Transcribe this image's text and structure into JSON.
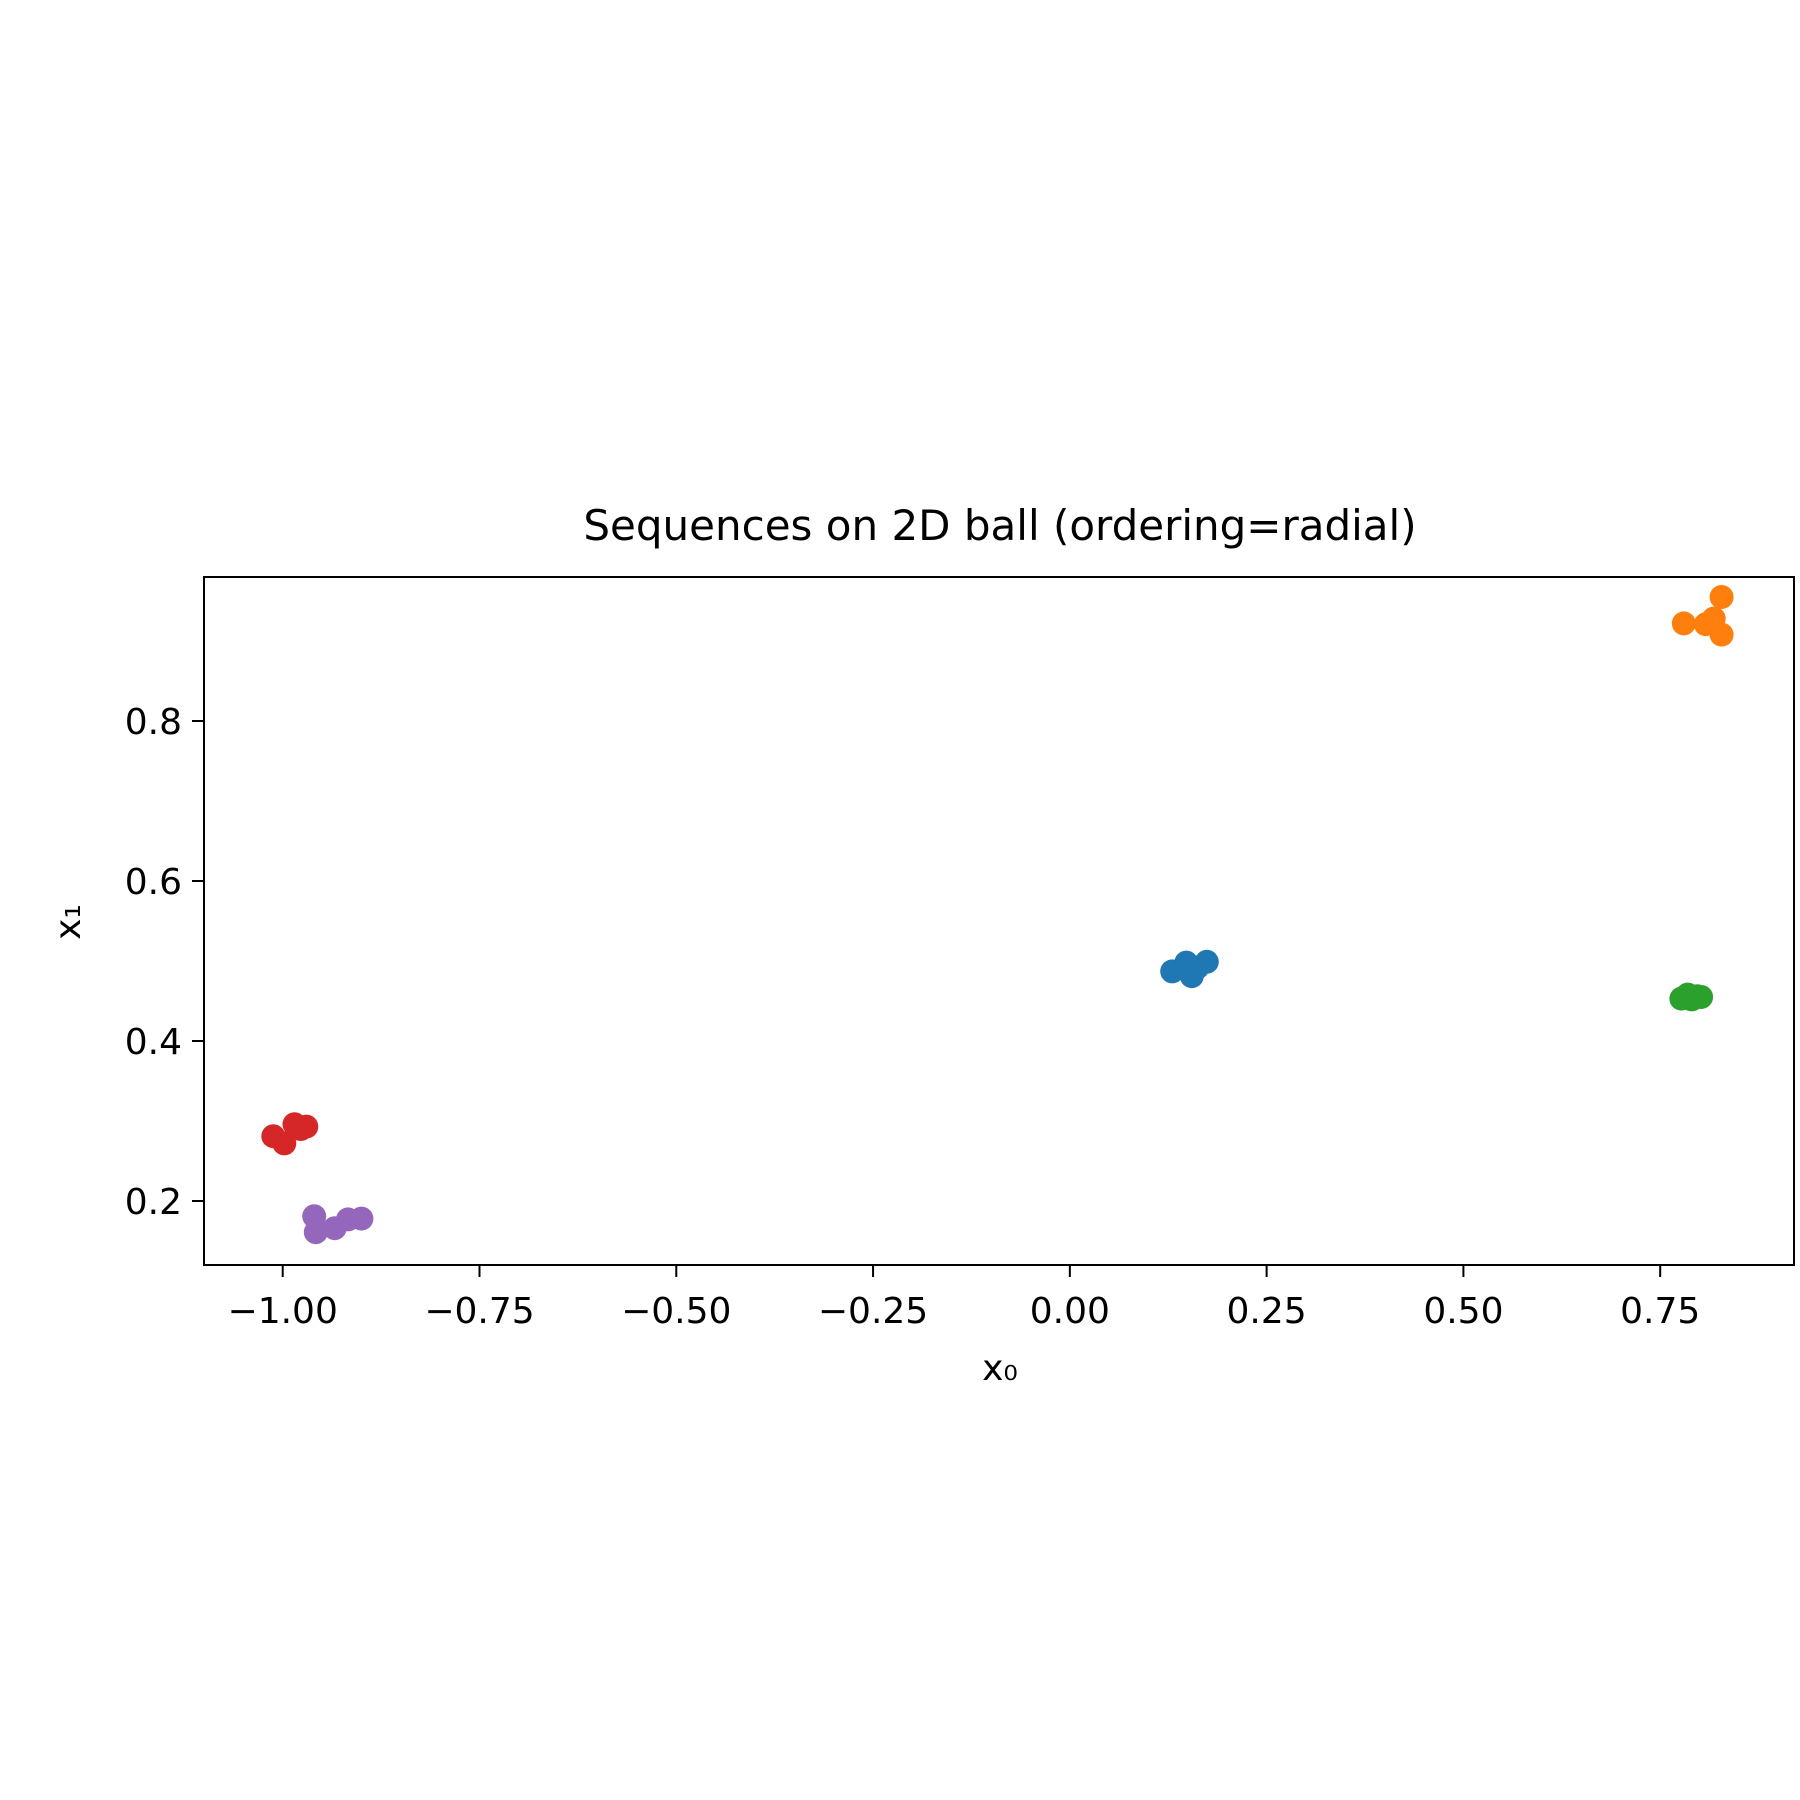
{
  "chart_data": {
    "type": "scatter",
    "title": "Sequences on 2D ball (ordering=radial)",
    "xlabel": "x₀",
    "ylabel": "x₁",
    "xlim": [
      -1.1,
      0.92
    ],
    "ylim": [
      0.12,
      0.98
    ],
    "xticks": [
      -1.0,
      -0.75,
      -0.5,
      -0.25,
      0.0,
      0.25,
      0.5,
      0.75
    ],
    "xtick_labels": [
      "−1.00",
      "−0.75",
      "−0.50",
      "−0.25",
      "0.00",
      "0.25",
      "0.50",
      "0.75"
    ],
    "yticks": [
      0.2,
      0.4,
      0.6,
      0.8
    ],
    "ytick_labels": [
      "0.2",
      "0.4",
      "0.6",
      "0.8"
    ],
    "grid": false,
    "legend": "none",
    "series": [
      {
        "color": "#1f77b4",
        "points": [
          {
            "x": 0.13,
            "y": 0.487
          },
          {
            "x": 0.148,
            "y": 0.498
          },
          {
            "x": 0.155,
            "y": 0.481
          },
          {
            "x": 0.162,
            "y": 0.492
          },
          {
            "x": 0.174,
            "y": 0.499
          }
        ]
      },
      {
        "color": "#ff7f0e",
        "points": [
          {
            "x": 0.78,
            "y": 0.922
          },
          {
            "x": 0.808,
            "y": 0.921
          },
          {
            "x": 0.818,
            "y": 0.928
          },
          {
            "x": 0.828,
            "y": 0.955
          },
          {
            "x": 0.828,
            "y": 0.908
          }
        ]
      },
      {
        "color": "#2ca02c",
        "points": [
          {
            "x": 0.777,
            "y": 0.453
          },
          {
            "x": 0.785,
            "y": 0.458
          },
          {
            "x": 0.79,
            "y": 0.452
          },
          {
            "x": 0.797,
            "y": 0.456
          },
          {
            "x": 0.802,
            "y": 0.455
          }
        ]
      },
      {
        "color": "#d62728",
        "points": [
          {
            "x": -1.012,
            "y": 0.281
          },
          {
            "x": -0.998,
            "y": 0.272
          },
          {
            "x": -0.985,
            "y": 0.296
          },
          {
            "x": -0.977,
            "y": 0.29
          },
          {
            "x": -0.97,
            "y": 0.293
          }
        ]
      },
      {
        "color": "#9467bd",
        "points": [
          {
            "x": -0.96,
            "y": 0.181
          },
          {
            "x": -0.958,
            "y": 0.161
          },
          {
            "x": -0.934,
            "y": 0.166
          },
          {
            "x": -0.917,
            "y": 0.177
          },
          {
            "x": -0.9,
            "y": 0.178
          }
        ]
      }
    ]
  }
}
